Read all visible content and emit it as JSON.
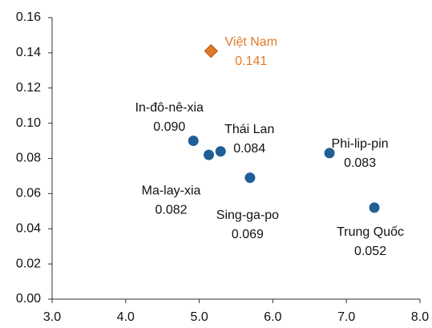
{
  "chart_data": {
    "type": "scatter",
    "points": [
      {
        "label": "Việt Nam",
        "x": 5.16,
        "y": 0.141,
        "value_label": "0.141",
        "color": "#e07a2a",
        "marker": "diamond"
      },
      {
        "label": "In-đô-nê-xia",
        "x": 4.92,
        "y": 0.09,
        "value_label": "0.090",
        "color": "#1f5f96",
        "marker": "circle"
      },
      {
        "label": "Thái Lan",
        "x": 5.29,
        "y": 0.084,
        "value_label": "0.084",
        "color": "#1f5f96",
        "marker": "circle"
      },
      {
        "label": "Ma-lay-xia",
        "x": 5.13,
        "y": 0.082,
        "value_label": "0.082",
        "color": "#1f5f96",
        "marker": "circle"
      },
      {
        "label": "Sing-ga-po",
        "x": 5.69,
        "y": 0.069,
        "value_label": "0.069",
        "color": "#1f5f96",
        "marker": "circle"
      },
      {
        "label": "Phi-lip-pin",
        "x": 6.77,
        "y": 0.083,
        "value_label": "0.083",
        "color": "#1f5f96",
        "marker": "circle"
      },
      {
        "label": "Trung Quốc",
        "x": 7.38,
        "y": 0.052,
        "value_label": "0.052",
        "color": "#1f5f96",
        "marker": "circle"
      }
    ],
    "xlim": [
      3,
      8
    ],
    "xticks": [
      {
        "value": 3,
        "label": "3.0"
      },
      {
        "value": 4,
        "label": "4.0"
      },
      {
        "value": 5,
        "label": "5.0"
      },
      {
        "value": 6,
        "label": "6.0"
      },
      {
        "value": 7,
        "label": "7.0"
      },
      {
        "value": 8,
        "label": "8.0"
      }
    ],
    "ylim": [
      0,
      0.16
    ],
    "yticks": [
      {
        "value": 0,
        "label": "0.00"
      },
      {
        "value": 0.02,
        "label": "0.02"
      },
      {
        "value": 0.04,
        "label": "0.04"
      },
      {
        "value": 0.06,
        "label": "0.06"
      },
      {
        "value": 0.08,
        "label": "0.08"
      },
      {
        "value": 0.1,
        "label": "0.10"
      },
      {
        "value": 0.12,
        "label": "0.12"
      },
      {
        "value": 0.14,
        "label": "0.14"
      },
      {
        "value": 0.16,
        "label": "0.16"
      }
    ]
  }
}
